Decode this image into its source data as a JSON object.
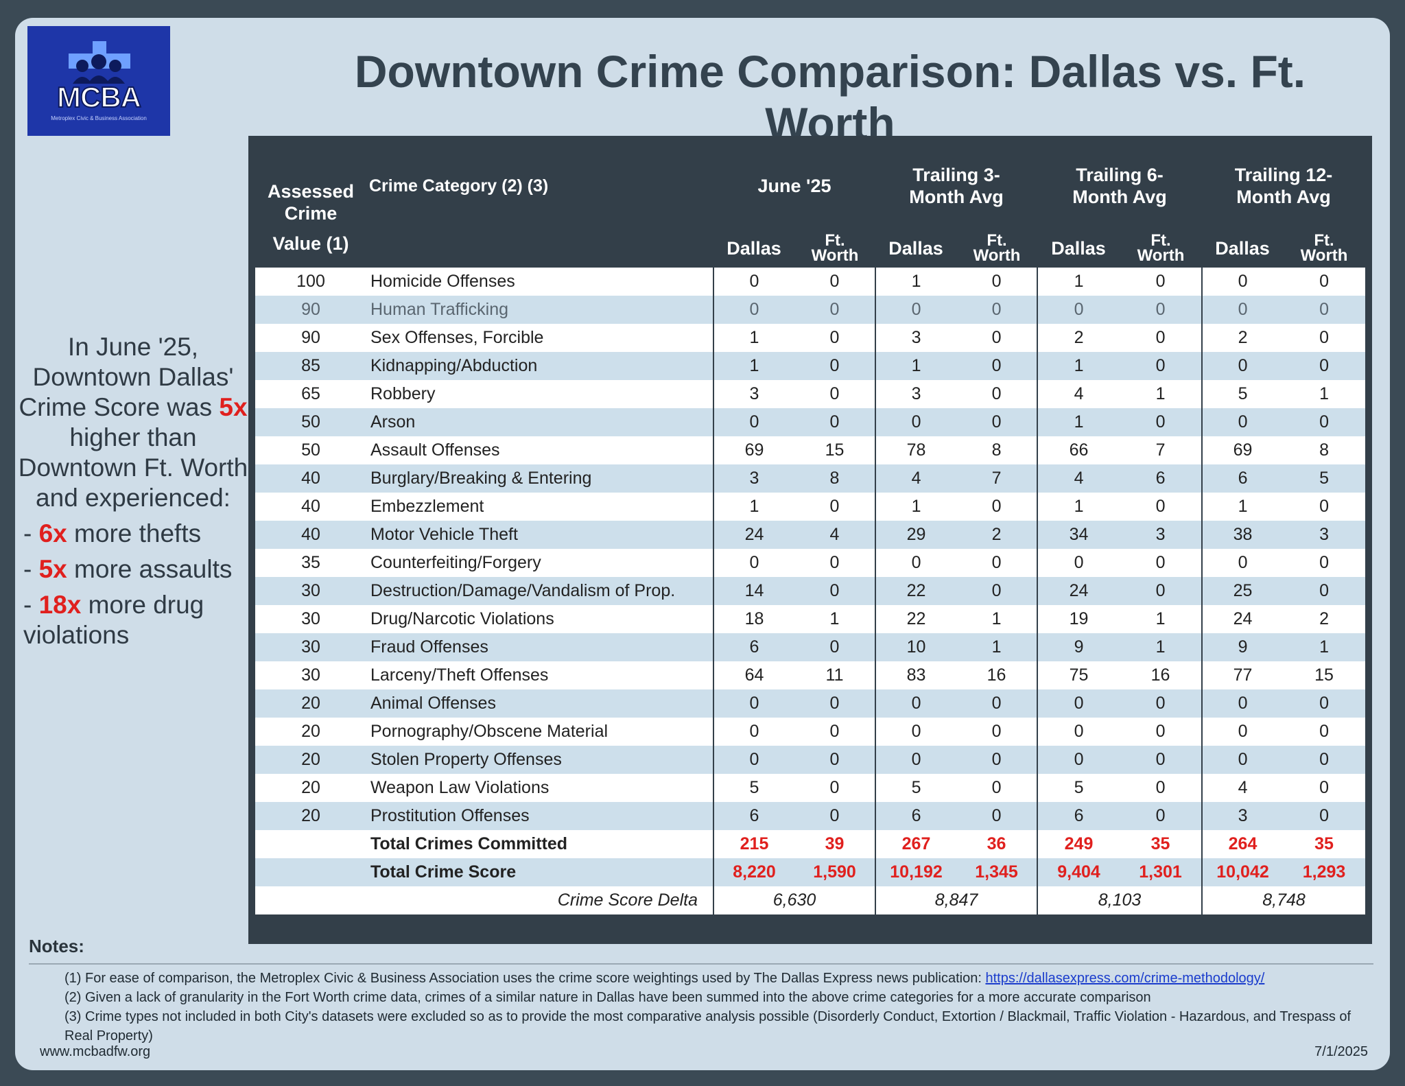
{
  "logo": {
    "text": "MCBA",
    "subtitle": "Metroplex Civic & Business Association"
  },
  "title": "Downtown Crime Comparison: Dallas vs. Ft. Worth",
  "sidebar": {
    "intro": "In June '25, Downtown Dallas' Crime Score was",
    "multiplier": "5x",
    "rest": "higher than Downtown Ft. Worth and experienced:",
    "bullets": [
      {
        "dash": "-",
        "num": "6x",
        "text": "more thefts"
      },
      {
        "dash": "-",
        "num": "5x",
        "text": "more assaults"
      },
      {
        "dash": "-",
        "num": "18x",
        "text": "more drug violations"
      }
    ]
  },
  "headers": {
    "assessed": "Assessed Crime",
    "value": "Value (1)",
    "category": "Crime Category (2) (3)",
    "groups": [
      "June '25",
      "Trailing 3-Month Avg",
      "Trailing 6-Month Avg",
      "Trailing 12-Month Avg"
    ],
    "dallas": "Dallas",
    "ftworth": "Ft. Worth"
  },
  "rows": [
    {
      "value": "100",
      "category": "Homicide Offenses",
      "cells": [
        "0",
        "0",
        "1",
        "0",
        "1",
        "0",
        "0",
        "0"
      ]
    },
    {
      "value": "90",
      "category": "Human Trafficking",
      "cells": [
        "0",
        "0",
        "0",
        "0",
        "0",
        "0",
        "0",
        "0"
      ]
    },
    {
      "value": "90",
      "category": "Sex Offenses, Forcible",
      "cells": [
        "1",
        "0",
        "3",
        "0",
        "2",
        "0",
        "2",
        "0"
      ]
    },
    {
      "value": "85",
      "category": "Kidnapping/Abduction",
      "cells": [
        "1",
        "0",
        "1",
        "0",
        "1",
        "0",
        "0",
        "0"
      ]
    },
    {
      "value": "65",
      "category": "Robbery",
      "cells": [
        "3",
        "0",
        "3",
        "0",
        "4",
        "1",
        "5",
        "1"
      ]
    },
    {
      "value": "50",
      "category": "Arson",
      "cells": [
        "0",
        "0",
        "0",
        "0",
        "1",
        "0",
        "0",
        "0"
      ]
    },
    {
      "value": "50",
      "category": "Assault Offenses",
      "cells": [
        "69",
        "15",
        "78",
        "8",
        "66",
        "7",
        "69",
        "8"
      ]
    },
    {
      "value": "40",
      "category": "Burglary/Breaking & Entering",
      "cells": [
        "3",
        "8",
        "4",
        "7",
        "4",
        "6",
        "6",
        "5"
      ]
    },
    {
      "value": "40",
      "category": "Embezzlement",
      "cells": [
        "1",
        "0",
        "1",
        "0",
        "1",
        "0",
        "1",
        "0"
      ]
    },
    {
      "value": "40",
      "category": "Motor Vehicle Theft",
      "cells": [
        "24",
        "4",
        "29",
        "2",
        "34",
        "3",
        "38",
        "3"
      ]
    },
    {
      "value": "35",
      "category": "Counterfeiting/Forgery",
      "cells": [
        "0",
        "0",
        "0",
        "0",
        "0",
        "0",
        "0",
        "0"
      ]
    },
    {
      "value": "30",
      "category": "Destruction/Damage/Vandalism of Prop.",
      "cells": [
        "14",
        "0",
        "22",
        "0",
        "24",
        "0",
        "25",
        "0"
      ]
    },
    {
      "value": "30",
      "category": "Drug/Narcotic Violations",
      "cells": [
        "18",
        "1",
        "22",
        "1",
        "19",
        "1",
        "24",
        "2"
      ]
    },
    {
      "value": "30",
      "category": "Fraud Offenses",
      "cells": [
        "6",
        "0",
        "10",
        "1",
        "9",
        "1",
        "9",
        "1"
      ]
    },
    {
      "value": "30",
      "category": "Larceny/Theft Offenses",
      "cells": [
        "64",
        "11",
        "83",
        "16",
        "75",
        "16",
        "77",
        "15"
      ]
    },
    {
      "value": "20",
      "category": "Animal Offenses",
      "cells": [
        "0",
        "0",
        "0",
        "0",
        "0",
        "0",
        "0",
        "0"
      ]
    },
    {
      "value": "20",
      "category": "Pornography/Obscene Material",
      "cells": [
        "0",
        "0",
        "0",
        "0",
        "0",
        "0",
        "0",
        "0"
      ]
    },
    {
      "value": "20",
      "category": "Stolen Property Offenses",
      "cells": [
        "0",
        "0",
        "0",
        "0",
        "0",
        "0",
        "0",
        "0"
      ]
    },
    {
      "value": "20",
      "category": "Weapon Law Violations",
      "cells": [
        "5",
        "0",
        "5",
        "0",
        "5",
        "0",
        "4",
        "0"
      ]
    },
    {
      "value": "20",
      "category": "Prostitution Offenses",
      "cells": [
        "6",
        "0",
        "6",
        "0",
        "6",
        "0",
        "3",
        "0"
      ]
    }
  ],
  "totals": {
    "committed": {
      "label": "Total Crimes Committed",
      "cells": [
        "215",
        "39",
        "267",
        "36",
        "249",
        "35",
        "264",
        "35"
      ]
    },
    "score": {
      "label": "Total Crime Score",
      "cells": [
        "8,220",
        "1,590",
        "10,192",
        "1,345",
        "9,404",
        "1,301",
        "10,042",
        "1,293"
      ]
    },
    "delta": {
      "label": "Crime Score Delta",
      "cells": [
        "6,630",
        "8,847",
        "8,103",
        "8,748"
      ]
    }
  },
  "notes": {
    "title": "Notes:",
    "n1": "(1) For ease of comparison, the Metroplex Civic & Business Association uses the crime score weightings used by The Dallas Express news publication: ",
    "n1_link": "https://dallasexpress.com/crime-methodology/",
    "n2": "(2) Given a lack of granularity in the Fort Worth crime data, crimes of a similar nature in Dallas have been summed into the above crime categories for a more accurate comparison",
    "n3": "(3) Crime types not included in both City's datasets were excluded so as to provide the most comparative analysis possible (Disorderly Conduct, Extortion / Blackmail, Traffic Violation - Hazardous, and Trespass of Real Property)"
  },
  "footer": {
    "site": "www.mcbadfw.org",
    "date": "7/1/2025"
  }
}
